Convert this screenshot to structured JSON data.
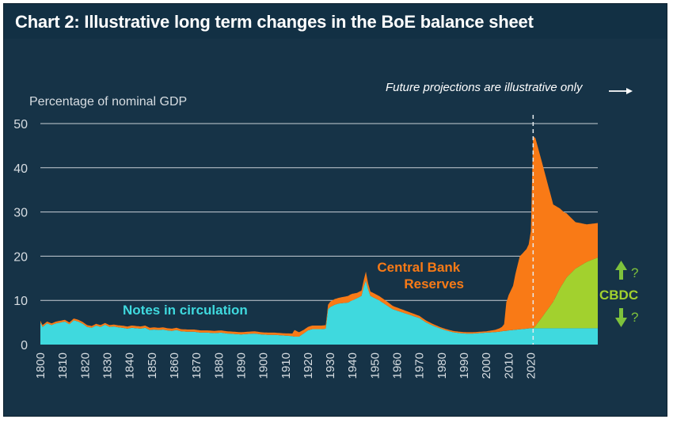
{
  "chart_data": {
    "type": "area",
    "title": "Chart 2: Illustrative long term changes in the BoE balance sheet",
    "ylabel": "Percentage of nominal GDP",
    "ylim": [
      0,
      50
    ],
    "xlim": [
      1800,
      2050
    ],
    "yticks": [
      0,
      10,
      20,
      30,
      40,
      50
    ],
    "xticks": [
      1800,
      1810,
      1820,
      1830,
      1840,
      1850,
      1860,
      1870,
      1880,
      1890,
      1900,
      1910,
      1920,
      1930,
      1940,
      1950,
      1960,
      1970,
      1980,
      1990,
      2000,
      2010,
      2020
    ],
    "grid": true,
    "projection_start": 2021,
    "projection_note": "Future projections are illustrative only",
    "series": [
      {
        "name": "Notes in circulation",
        "color": "#3fd9de",
        "x": [
          1800,
          1801,
          1803,
          1805,
          1807,
          1809,
          1811,
          1813,
          1815,
          1817,
          1819,
          1821,
          1823,
          1825,
          1827,
          1829,
          1831,
          1833,
          1835,
          1837,
          1839,
          1841,
          1843,
          1845,
          1847,
          1849,
          1851,
          1853,
          1855,
          1857,
          1859,
          1861,
          1863,
          1866,
          1869,
          1872,
          1875,
          1878,
          1881,
          1884,
          1887,
          1890,
          1893,
          1896,
          1899,
          1902,
          1905,
          1908,
          1911,
          1913,
          1914,
          1916,
          1918,
          1920,
          1922,
          1924,
          1926,
          1928,
          1929,
          1930,
          1932,
          1934,
          1936,
          1938,
          1939,
          1940,
          1942,
          1944,
          1945,
          1946,
          1947,
          1948,
          1950,
          1952,
          1955,
          1958,
          1961,
          1964,
          1967,
          1970,
          1973,
          1976,
          1979,
          1982,
          1985,
          1988,
          1991,
          1994,
          1997,
          2000,
          2003,
          2006,
          2008,
          2009,
          2010,
          2012,
          2014,
          2016,
          2018,
          2020,
          2022,
          2025,
          2030,
          2035,
          2040,
          2045,
          2050
        ],
        "values": [
          5.0,
          4.0,
          4.8,
          4.4,
          4.8,
          5.0,
          5.2,
          4.6,
          5.5,
          5.2,
          4.7,
          4.0,
          3.8,
          4.3,
          4.0,
          4.5,
          4.0,
          4.1,
          3.9,
          3.8,
          3.6,
          3.8,
          3.7,
          3.6,
          3.8,
          3.3,
          3.4,
          3.3,
          3.4,
          3.2,
          3.1,
          3.3,
          3.0,
          2.9,
          2.9,
          2.7,
          2.7,
          2.6,
          2.7,
          2.5,
          2.4,
          2.3,
          2.4,
          2.5,
          2.3,
          2.2,
          2.2,
          2.1,
          2.0,
          1.9,
          1.8,
          1.8,
          2.5,
          3.2,
          3.5,
          3.5,
          3.5,
          3.6,
          8.0,
          8.5,
          9.0,
          9.3,
          9.4,
          9.5,
          9.8,
          10.0,
          10.5,
          11.0,
          13.0,
          14.5,
          12.5,
          11.0,
          10.5,
          10.0,
          9.0,
          8.0,
          7.5,
          7.0,
          6.5,
          6.0,
          5.0,
          4.3,
          3.7,
          3.2,
          2.8,
          2.6,
          2.5,
          2.5,
          2.6,
          2.7,
          2.8,
          2.9,
          3.1,
          3.1,
          3.2,
          3.3,
          3.4,
          3.5,
          3.6,
          3.7,
          3.7,
          3.7,
          3.7,
          3.7,
          3.7,
          3.7,
          3.7
        ]
      },
      {
        "name": "Central Bank Reserves",
        "color": "#f97a16",
        "x": [
          1800,
          1810,
          1820,
          1830,
          1840,
          1850,
          1860,
          1870,
          1880,
          1890,
          1900,
          1910,
          1913,
          1914,
          1916,
          1918,
          1920,
          1925,
          1928,
          1929,
          1930,
          1932,
          1934,
          1936,
          1938,
          1940,
          1942,
          1944,
          1945,
          1946,
          1947,
          1948,
          1950,
          1955,
          1960,
          1965,
          1970,
          1975,
          1980,
          1985,
          1990,
          1995,
          2000,
          2004,
          2006,
          2007,
          2008,
          2009,
          2010,
          2011,
          2012,
          2013,
          2014,
          2015,
          2016,
          2017,
          2018,
          2019,
          2020,
          2021,
          2022,
          2025,
          2030,
          2035,
          2040,
          2045,
          2050
        ],
        "values": [
          0.4,
          0.4,
          0.4,
          0.4,
          0.5,
          0.5,
          0.5,
          0.5,
          0.5,
          0.5,
          0.5,
          0.5,
          0.6,
          1.5,
          1.0,
          0.8,
          0.8,
          0.8,
          0.8,
          1.0,
          1.2,
          1.3,
          1.3,
          1.4,
          1.5,
          1.5,
          1.2,
          1.2,
          1.5,
          2.0,
          1.3,
          1.0,
          1.0,
          0.9,
          0.7,
          0.6,
          0.5,
          0.4,
          0.3,
          0.3,
          0.3,
          0.3,
          0.3,
          0.5,
          0.8,
          1.0,
          1.5,
          6.5,
          8.0,
          9.0,
          10.0,
          12.5,
          14.5,
          16.5,
          17.0,
          17.5,
          18.0,
          19.0,
          22.0,
          43.5,
          42.5,
          35.0,
          22.0,
          15.5,
          10.5,
          8.5,
          7.8
        ]
      },
      {
        "name": "CBDC",
        "color": "#a2d12e",
        "x": [
          2021,
          2022,
          2025,
          2030,
          2033,
          2036,
          2040,
          2045,
          2050
        ],
        "values": [
          0.0,
          0.5,
          2.5,
          6.0,
          9.0,
          11.5,
          13.5,
          15.0,
          16.0
        ]
      }
    ],
    "annotations": {
      "cbdc_up": "?",
      "cbdc_down": "?"
    }
  },
  "colors": {
    "background": "#163347",
    "gridline": "#c8d0d6",
    "axis_text": "#d7dde2",
    "arrow": "#7ec23c"
  }
}
